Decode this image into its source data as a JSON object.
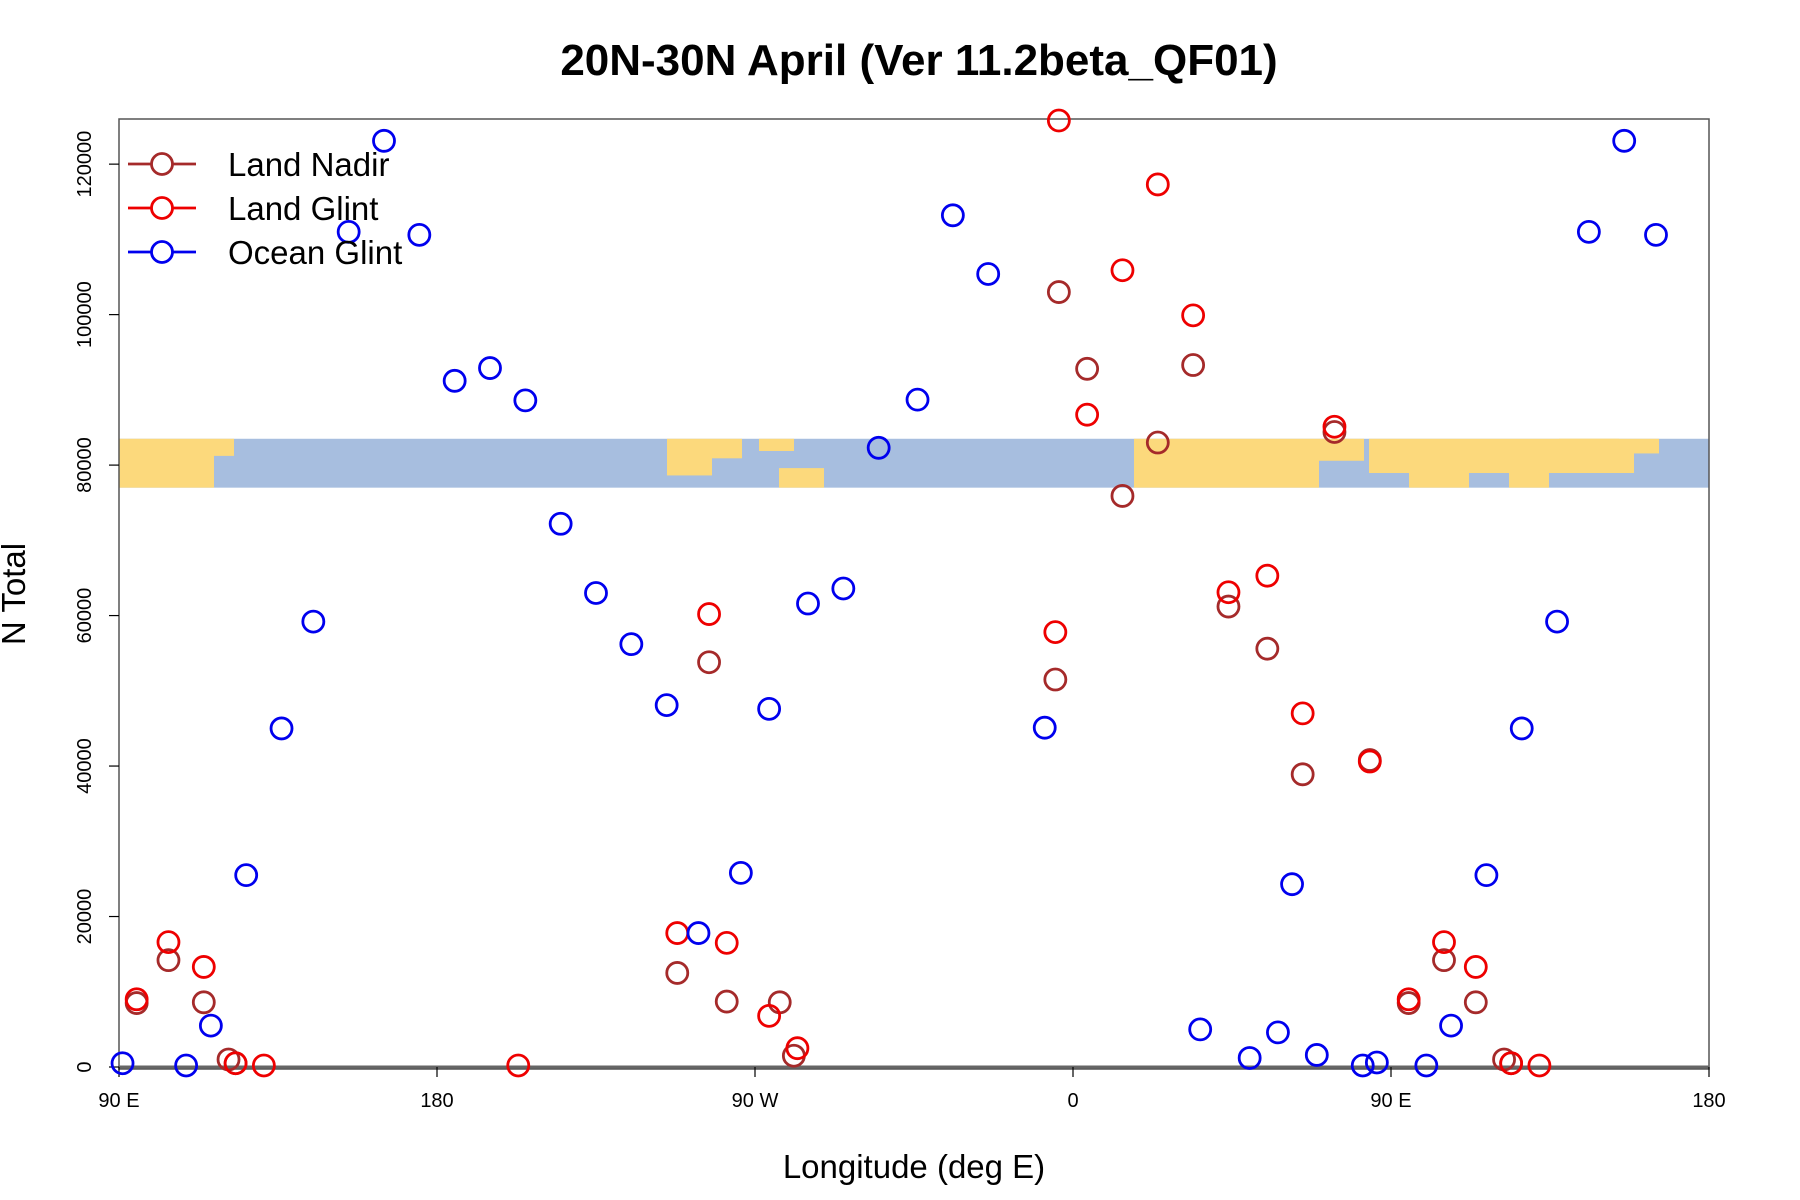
{
  "chart_data": {
    "type": "scatter",
    "title": "20N-30N April (Ver 11.2beta_QF01)",
    "xlabel": "Longitude (deg E)",
    "ylabel": "N Total",
    "xlim": [
      90,
      540
    ],
    "ylim": [
      0,
      126000
    ],
    "x_ticks": [
      {
        "value": 90,
        "label": "90 E"
      },
      {
        "value": 180,
        "label": "180"
      },
      {
        "value": 270,
        "label": "90 W"
      },
      {
        "value": 360,
        "label": "0"
      },
      {
        "value": 450,
        "label": "90 E"
      },
      {
        "value": 540,
        "label": "180"
      }
    ],
    "y_ticks": [
      {
        "value": 0,
        "label": "0"
      },
      {
        "value": 20000,
        "label": "20000"
      },
      {
        "value": 40000,
        "label": "40000"
      },
      {
        "value": 60000,
        "label": "60000"
      },
      {
        "value": 80000,
        "label": "80000"
      },
      {
        "value": 100000,
        "label": "100000"
      },
      {
        "value": 120000,
        "label": "120000"
      }
    ],
    "legend_position": "top-left",
    "grid": false,
    "map_strip": {
      "y_range": [
        77000,
        83500
      ],
      "ocean_color": "#a7bedf",
      "land_color": "#fcd97c"
    },
    "series": [
      {
        "name": "Land Nadir",
        "color": "#a52a2a",
        "points": [
          [
            95,
            8500
          ],
          [
            104,
            14200
          ],
          [
            114,
            8600
          ],
          [
            121,
            1000
          ],
          [
            123,
            500
          ],
          [
            248,
            12500
          ],
          [
            257,
            53800
          ],
          [
            262,
            8700
          ],
          [
            277,
            8600
          ],
          [
            281,
            1500
          ],
          [
            355,
            51500
          ],
          [
            356,
            103000
          ],
          [
            364,
            92800
          ],
          [
            374,
            75900
          ],
          [
            384,
            83000
          ],
          [
            394,
            93300
          ],
          [
            404,
            61200
          ],
          [
            415,
            55600
          ],
          [
            425,
            38900
          ],
          [
            434,
            84400
          ],
          [
            444,
            40800
          ],
          [
            455,
            8500
          ],
          [
            465,
            14200
          ],
          [
            474,
            8600
          ],
          [
            482,
            1000
          ],
          [
            484,
            500
          ]
        ]
      },
      {
        "name": "Land Glint",
        "color": "#ee0000",
        "points": [
          [
            95,
            9000
          ],
          [
            104,
            16600
          ],
          [
            114,
            13300
          ],
          [
            123,
            500
          ],
          [
            131,
            200
          ],
          [
            203,
            200
          ],
          [
            248,
            17800
          ],
          [
            257,
            60200
          ],
          [
            262,
            16500
          ],
          [
            274,
            6800
          ],
          [
            282,
            2500
          ],
          [
            355,
            57800
          ],
          [
            356,
            125800
          ],
          [
            364,
            86700
          ],
          [
            374,
            105900
          ],
          [
            384,
            117300
          ],
          [
            394,
            99900
          ],
          [
            404,
            63100
          ],
          [
            415,
            65300
          ],
          [
            425,
            47000
          ],
          [
            434,
            85100
          ],
          [
            444,
            40600
          ],
          [
            455,
            9000
          ],
          [
            465,
            16600
          ],
          [
            474,
            13300
          ],
          [
            484,
            500
          ],
          [
            492,
            200
          ]
        ]
      },
      {
        "name": "Ocean Glint",
        "color": "#0000ee",
        "points": [
          [
            91,
            500
          ],
          [
            109,
            200
          ],
          [
            116,
            5500
          ],
          [
            126,
            25500
          ],
          [
            136,
            45000
          ],
          [
            145,
            59200
          ],
          [
            155,
            111000
          ],
          [
            165,
            123100
          ],
          [
            175,
            110600
          ],
          [
            185,
            91200
          ],
          [
            195,
            92900
          ],
          [
            205,
            88600
          ],
          [
            215,
            72200
          ],
          [
            225,
            63000
          ],
          [
            235,
            56200
          ],
          [
            245,
            48100
          ],
          [
            254,
            17800
          ],
          [
            266,
            25800
          ],
          [
            274,
            47600
          ],
          [
            285,
            61600
          ],
          [
            295,
            63600
          ],
          [
            305,
            82300
          ],
          [
            316,
            88700
          ],
          [
            326,
            113200
          ],
          [
            336,
            105400
          ],
          [
            352,
            45100
          ],
          [
            396,
            5000
          ],
          [
            410,
            1200
          ],
          [
            418,
            4600
          ],
          [
            422,
            24300
          ],
          [
            429,
            1600
          ],
          [
            442,
            200
          ],
          [
            446,
            600
          ],
          [
            460,
            200
          ],
          [
            467,
            5500
          ],
          [
            477,
            25500
          ],
          [
            487,
            45000
          ],
          [
            497,
            59200
          ],
          [
            506,
            111000
          ],
          [
            516,
            123100
          ],
          [
            525,
            110600
          ]
        ]
      }
    ]
  }
}
